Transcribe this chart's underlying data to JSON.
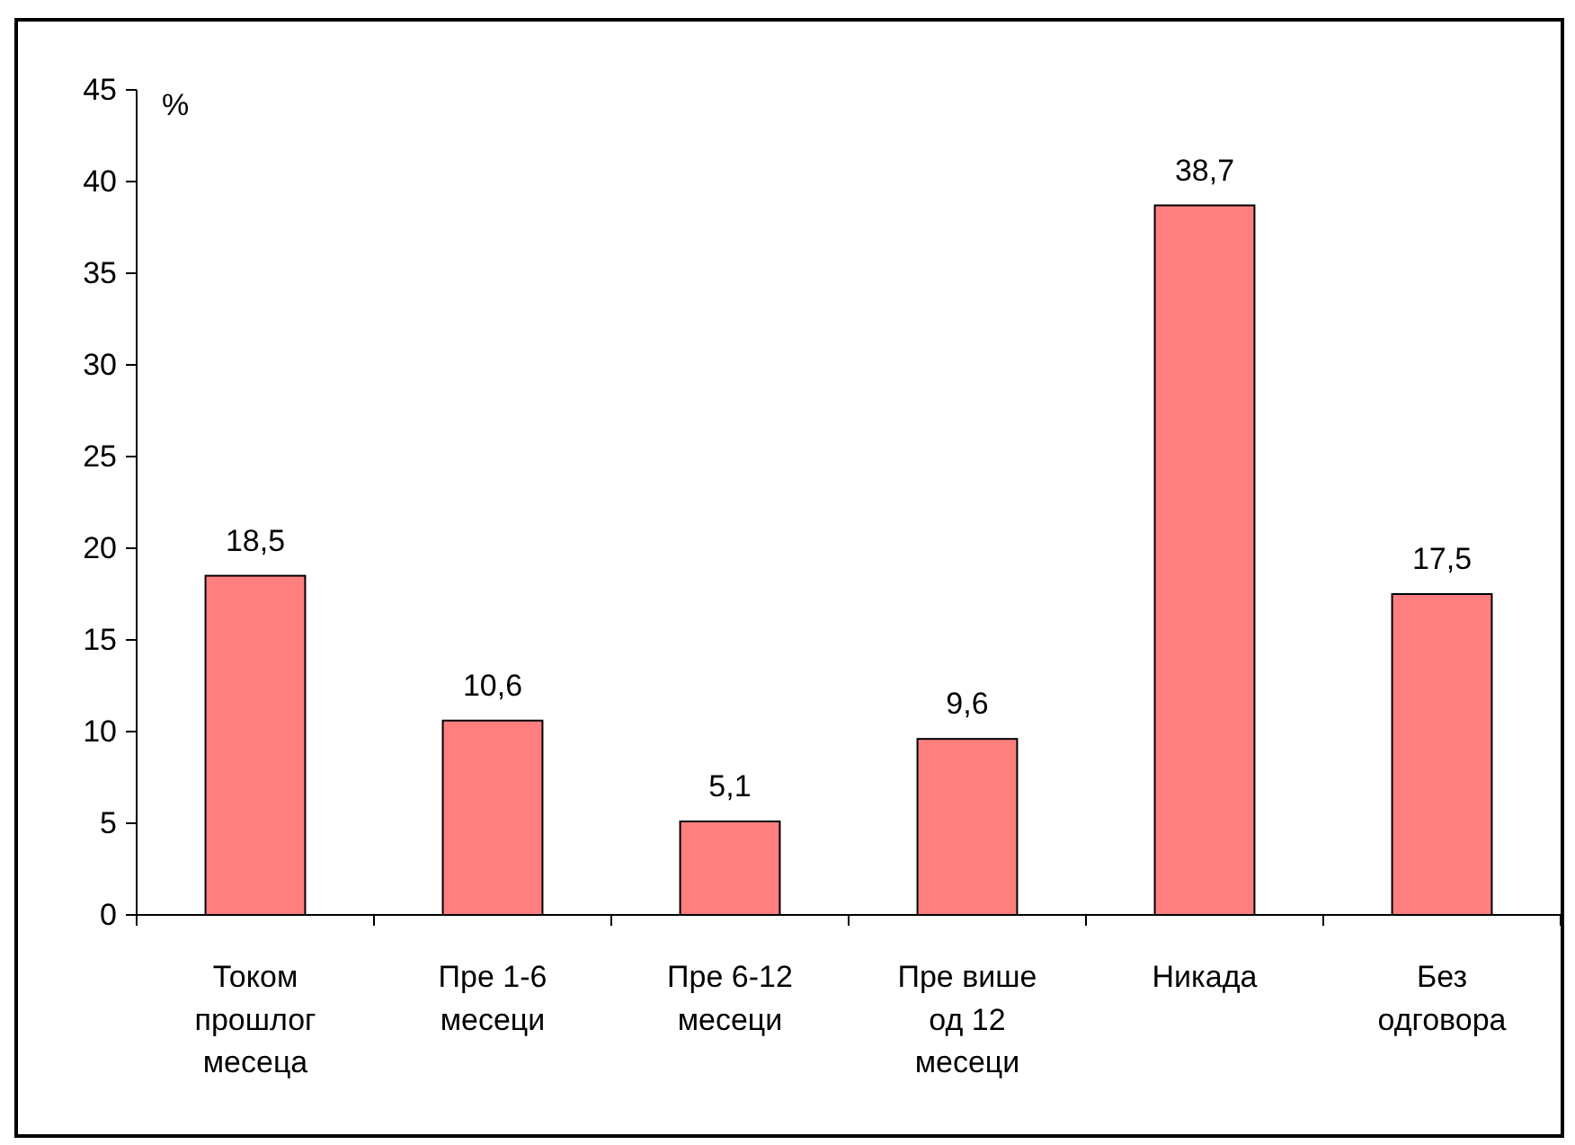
{
  "chart_data": {
    "type": "bar",
    "ylabel": "%",
    "categories": [
      "Током прошлог месеца",
      "Пре 1-6 месеци",
      "Пре 6-12 месеци",
      "Пре више од 12 месеци",
      "Никада",
      "Без одговора"
    ],
    "values": [
      18.5,
      10.6,
      5.1,
      9.6,
      38.7,
      17.5
    ],
    "color": "#ff7f7f",
    "data_labels": true,
    "value_labels": [
      "18,5",
      "10,6",
      "5,1",
      "9,6",
      "38,7",
      "17,5"
    ],
    "ylim": [
      0,
      45
    ],
    "yticks": [
      0,
      5,
      10,
      15,
      20,
      25,
      30,
      35,
      40,
      45
    ],
    "grid": false
  }
}
